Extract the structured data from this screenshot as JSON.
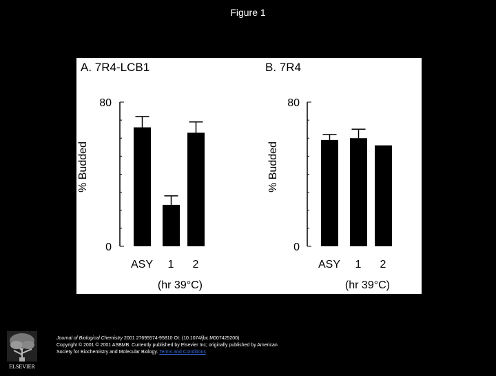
{
  "slide": {
    "title": "Figure 1"
  },
  "chart_data": [
    {
      "type": "bar",
      "panel_label": "A. 7R4-LCB1",
      "ylabel": "% Budded",
      "ylim": [
        0,
        80
      ],
      "yticks": [
        "0",
        "80"
      ],
      "categories": [
        "ASY",
        "1",
        "2"
      ],
      "values": [
        66,
        23,
        63
      ],
      "errors": [
        6,
        5,
        6
      ],
      "xlabel": "(hr 39°C)",
      "bar_color": "#000000"
    },
    {
      "type": "bar",
      "panel_label": "B. 7R4",
      "ylabel": "% Budded",
      "ylim": [
        0,
        80
      ],
      "yticks": [
        "0",
        "80"
      ],
      "categories": [
        "ASY",
        "1",
        "2"
      ],
      "values": [
        59,
        60,
        56
      ],
      "errors": [
        3,
        5,
        0
      ],
      "xlabel": "(hr 39°C)",
      "bar_color": "#000000"
    }
  ],
  "footer": {
    "logo_text": "ELSEVIER",
    "journal": "Journal of Biological Chemistry",
    "citation_rest": " 2001 27695574-95810 OI: (10.1074/jbc.M007425200)",
    "line2": "Copyright © 2001 © 2001 ASBMB. Currently published by Elsevier Inc; originally published by American",
    "line3": "Society for Biochemistry and Molecular Biology. ",
    "link": "Terms and Conditions"
  }
}
